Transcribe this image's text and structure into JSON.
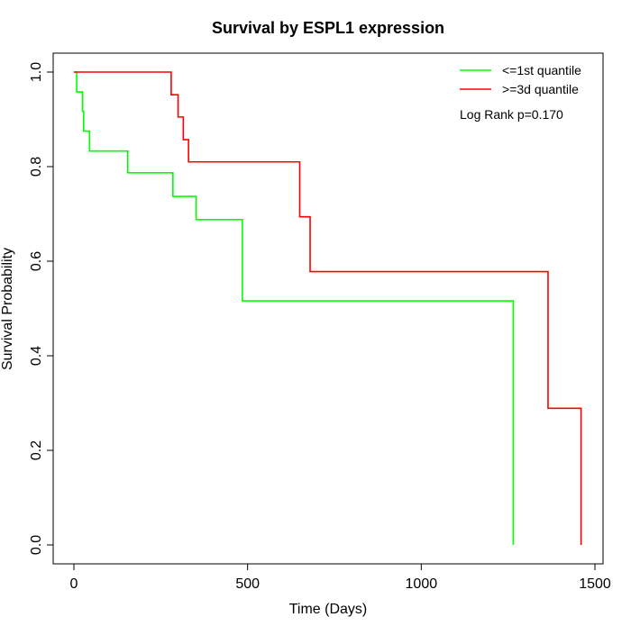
{
  "chart_data": {
    "type": "line",
    "title": "Survival by ESPL1 expression",
    "xlabel": "Time (Days)",
    "ylabel": "Survival Probability",
    "xlim": [
      0,
      1500
    ],
    "ylim": [
      0,
      1
    ],
    "x_ticks": [
      0,
      500,
      1000,
      1500
    ],
    "x_tick_labels": [
      "0",
      "500",
      "1000",
      "1500"
    ],
    "y_ticks": [
      0,
      0.2,
      0.4,
      0.6,
      0.8,
      1.0
    ],
    "y_tick_labels": [
      "0.0",
      "0.2",
      "0.4",
      "0.6",
      "0.8",
      "1.0"
    ],
    "grid": false,
    "legend_position": "top-right",
    "annotation": "Log Rank p=0.170",
    "series": [
      {
        "name": "<=1st quantile",
        "color": "#00ff00",
        "step": true,
        "x": [
          0,
          8,
          25,
          28,
          45,
          155,
          285,
          352,
          485,
          1265,
          1265
        ],
        "y": [
          1.0,
          0.958,
          0.917,
          0.875,
          0.833,
          0.787,
          0.737,
          0.688,
          0.516,
          0.516,
          0.0
        ]
      },
      {
        "name": ">=3d quantile",
        "color": "#ff0000",
        "step": true,
        "x": [
          0,
          280,
          300,
          315,
          330,
          650,
          680,
          1365,
          1460,
          1460
        ],
        "y": [
          1.0,
          0.952,
          0.905,
          0.857,
          0.81,
          0.694,
          0.578,
          0.289,
          0.289,
          0.0
        ]
      }
    ]
  }
}
